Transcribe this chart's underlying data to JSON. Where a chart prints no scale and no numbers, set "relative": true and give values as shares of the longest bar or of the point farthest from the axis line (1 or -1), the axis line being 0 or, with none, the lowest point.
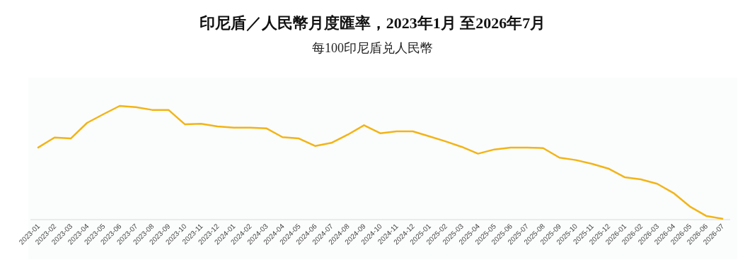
{
  "chart_data": {
    "type": "line",
    "title": "印尼盾／人民幣月度匯率，2023年1月 至2026年7月",
    "subtitle": "每100印尼盾兑人民幣",
    "relative": true,
    "categories": [
      "2023-01",
      "2023-02",
      "2023-03",
      "2023-04",
      "2023-05",
      "2023-06",
      "2023-07",
      "2023-08",
      "2023-09",
      "2023-10",
      "2023-11",
      "2023-12",
      "2024-01",
      "2024-02",
      "2024-03",
      "2024-04",
      "2024-05",
      "2024-06",
      "2024-07",
      "2024-08",
      "2024-09",
      "2024-10",
      "2024-11",
      "2024-12",
      "2025-01",
      "2025-02",
      "2025-03",
      "2025-04",
      "2025-05",
      "2025-06",
      "2025-07",
      "2025-08",
      "2025-09",
      "2025-10",
      "2025-11",
      "2025-12",
      "2026-01",
      "2026-02",
      "2026-03",
      "2026-04",
      "2026-05",
      "2026-06",
      "2026-07"
    ],
    "series": [
      {
        "color": "#f2b416",
        "values": [
          0.634,
          0.722,
          0.714,
          0.851,
          0.927,
          1.0,
          0.989,
          0.965,
          0.965,
          0.839,
          0.843,
          0.82,
          0.809,
          0.809,
          0.803,
          0.725,
          0.714,
          0.648,
          0.675,
          0.747,
          0.83,
          0.76,
          0.776,
          0.776,
          0.733,
          0.689,
          0.64,
          0.58,
          0.617,
          0.634,
          0.634,
          0.629,
          0.545,
          0.524,
          0.491,
          0.449,
          0.373,
          0.354,
          0.315,
          0.234,
          0.116,
          0.033,
          0.008
        ]
      }
    ],
    "grid": false,
    "marker": "none",
    "line_style": "solid"
  }
}
